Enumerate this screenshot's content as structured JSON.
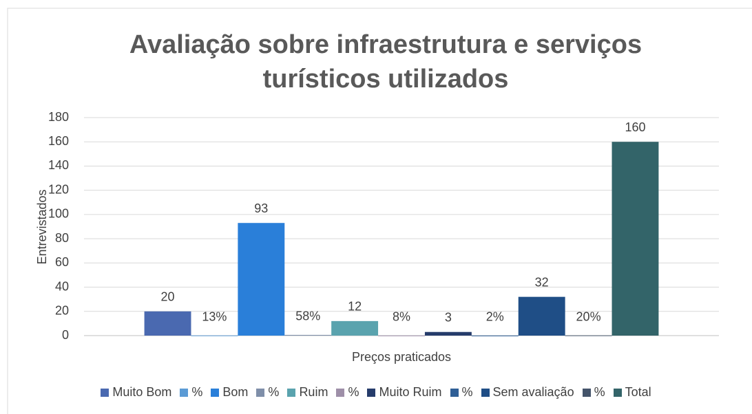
{
  "chart_data": {
    "type": "bar",
    "title": "Avaliação sobre infraestrutura e serviços turísticos utilizados",
    "y_label": "Entrevistados",
    "categories": [
      "Preços praticados"
    ],
    "ylim": [
      0,
      180
    ],
    "yticks": [
      0,
      20,
      40,
      60,
      80,
      100,
      120,
      140,
      160,
      180
    ],
    "grid": true,
    "legend": "bottom",
    "series": [
      {
        "name": "Muito Bom",
        "color": "#4a69b0",
        "values": [
          20
        ]
      },
      {
        "name": "%",
        "color": "#5b9bd5",
        "values": [
          0.13
        ],
        "value_labels": [
          "13%"
        ]
      },
      {
        "name": "Bom",
        "color": "#2a7fd9",
        "values": [
          93
        ]
      },
      {
        "name": "%",
        "color": "#7f8fa9",
        "values": [
          0.58
        ],
        "value_labels": [
          "58%"
        ]
      },
      {
        "name": "Ruim",
        "color": "#5aa3ae",
        "values": [
          12
        ]
      },
      {
        "name": "%",
        "color": "#9e8fa8",
        "values": [
          0.08
        ],
        "value_labels": [
          "8%"
        ]
      },
      {
        "name": "Muito Ruim",
        "color": "#263c6b",
        "values": [
          3
        ]
      },
      {
        "name": "%",
        "color": "#2f5f96",
        "values": [
          0.02
        ],
        "value_labels": [
          "2%"
        ]
      },
      {
        "name": "Sem avaliação",
        "color": "#1f4e86",
        "values": [
          32
        ]
      },
      {
        "name": "%",
        "color": "#44546a",
        "values": [
          0.2
        ],
        "value_labels": [
          "20%"
        ]
      },
      {
        "name": "Total",
        "color": "#336469",
        "values": [
          160
        ]
      }
    ]
  }
}
